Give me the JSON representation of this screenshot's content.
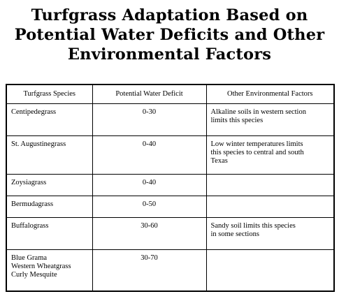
{
  "title": {
    "line1": "Turfgrass Adaptation Based on",
    "line2": "Potential Water Deficits and Other",
    "line3": "Environmental Factors"
  },
  "table": {
    "headers": [
      "Turfgrass Species",
      "Potential Water Deficit",
      "Other Environmental Factors"
    ],
    "rows": [
      {
        "species": [
          "Centipedegrass"
        ],
        "deficit": "0-30",
        "factors": [
          "Alkaline soils in western section",
          "limits this species"
        ]
      },
      {
        "species": [
          "St. Augustinegrass"
        ],
        "deficit": "0-40",
        "factors": [
          "Low winter temperatures limits",
          "this species to central and south",
          "Texas"
        ]
      },
      {
        "species": [
          "Zoysiagrass"
        ],
        "deficit": "0-40",
        "factors": []
      },
      {
        "species": [
          "Bermudagrass"
        ],
        "deficit": "0-50",
        "factors": []
      },
      {
        "species": [
          "Buffalograss"
        ],
        "deficit": "30-60",
        "factors": [
          "Sandy soil limits this species",
          "in some sections"
        ]
      },
      {
        "species": [
          "Blue Grama",
          "Western Wheatgrass",
          "Curly Mesquite"
        ],
        "deficit": "30-70",
        "factors": []
      }
    ]
  }
}
